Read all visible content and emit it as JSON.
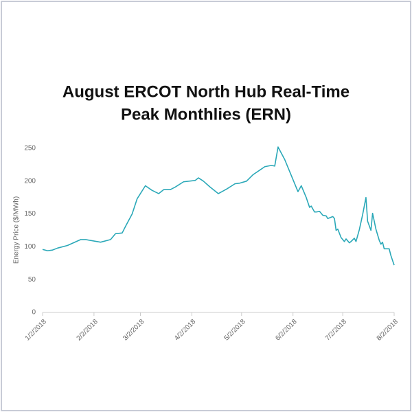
{
  "chart_data": {
    "type": "line",
    "title": [
      "August ERCOT North Hub Real-Time",
      "Peak Monthlies (ERN)"
    ],
    "y_label": "Energy Price ($/MWh)",
    "x": [
      "1/2/2018",
      "1/5/2018",
      "1/8/2018",
      "1/11/2018",
      "1/17/2018",
      "1/25/2018",
      "1/28/2018",
      "2/6/2018",
      "2/12/2018",
      "2/15/2018",
      "2/19/2018",
      "2/21/2018",
      "2/25/2018",
      "2/28/2018",
      "3/5/2018",
      "3/9/2018",
      "3/13/2018",
      "3/16/2018",
      "3/20/2018",
      "3/23/2018",
      "3/28/2018",
      "4/4/2018",
      "4/6/2018",
      "4/9/2018",
      "4/13/2018",
      "4/18/2018",
      "4/23/2018",
      "4/28/2018",
      "5/1/2018",
      "5/5/2018",
      "5/9/2018",
      "5/16/2018",
      "5/20/2018",
      "5/22/2018",
      "5/24/2018",
      "5/28/2018",
      "6/5/2018",
      "6/7/2018",
      "6/10/2018",
      "6/12/2018",
      "6/13/2018",
      "6/15/2018",
      "6/16/2018",
      "6/18/2018",
      "6/20/2018",
      "6/22/2018",
      "6/23/2018",
      "6/26/2018",
      "6/27/2018",
      "6/28/2018",
      "6/29/2018",
      "7/1/2018",
      "7/3/2018",
      "7/4/2018",
      "7/6/2018",
      "7/7/2018",
      "7/9/2018",
      "7/10/2018",
      "7/12/2018",
      "7/14/2018",
      "7/16/2018",
      "7/17/2018",
      "7/19/2018",
      "7/20/2018",
      "7/22/2018",
      "7/24/2018",
      "7/25/2018",
      "7/26/2018",
      "7/27/2018",
      "7/30/2018",
      "7/31/2018",
      "8/2/2018"
    ],
    "series": [
      {
        "name": "ERN",
        "color": "#2aa8b8",
        "values": [
          96,
          94,
          95,
          98,
          102,
          111,
          111,
          107,
          111,
          120,
          121,
          131,
          150,
          173,
          193,
          186,
          181,
          187,
          187,
          191,
          199,
          201,
          205,
          200,
          191,
          181,
          188,
          196,
          197,
          200,
          210,
          222,
          224,
          223,
          252,
          233,
          184,
          193,
          175,
          160,
          162,
          153,
          153,
          154,
          148,
          147,
          143,
          146,
          143,
          125,
          127,
          114,
          108,
          112,
          106,
          108,
          113,
          108,
          126,
          149,
          175,
          139,
          125,
          151,
          127,
          110,
          104,
          107,
          97,
          97,
          87,
          72
        ]
      }
    ],
    "xlim": [
      "1/2/2018",
      "8/2/2018"
    ],
    "xticks": [
      "1/2/2018",
      "2/2/2018",
      "3/2/2018",
      "4/2/2018",
      "5/2/2018",
      "6/2/2018",
      "7/2/2018",
      "8/2/2018"
    ],
    "ylim": [
      0,
      250
    ],
    "yticks": [
      0,
      50,
      100,
      150,
      200,
      250
    ],
    "grid": false
  }
}
